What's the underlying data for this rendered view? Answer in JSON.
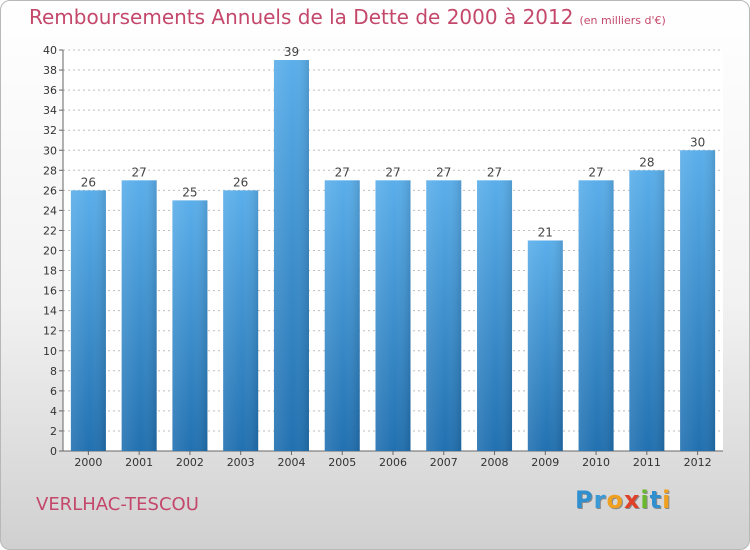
{
  "title": {
    "main": "Remboursements Annuels de la Dette de 2000 à 2012",
    "unit": "(en milliers d'€)"
  },
  "footer": {
    "commune": "VERLHAC-TESCOU",
    "logo_letters": [
      {
        "ch": "P",
        "color": "#2f8fcf"
      },
      {
        "ch": "r",
        "color": "#3a9ad6"
      },
      {
        "ch": "o",
        "color": "#f0a020"
      },
      {
        "ch": "x",
        "color": "#e0402a"
      },
      {
        "ch": "i",
        "color": "#6ab82e"
      },
      {
        "ch": "t",
        "color": "#2f8fcf"
      },
      {
        "ch": "i",
        "color": "#f0a020"
      }
    ]
  },
  "chart_data": {
    "type": "bar",
    "categories": [
      "2000",
      "2001",
      "2002",
      "2003",
      "2004",
      "2005",
      "2006",
      "2007",
      "2008",
      "2009",
      "2010",
      "2011",
      "2012"
    ],
    "values": [
      26,
      27,
      25,
      26,
      39,
      27,
      27,
      27,
      27,
      21,
      27,
      28,
      30
    ],
    "ylim": [
      0,
      40
    ],
    "yticks": [
      0,
      2,
      4,
      6,
      8,
      10,
      12,
      14,
      16,
      18,
      20,
      22,
      24,
      26,
      28,
      30,
      32,
      34,
      36,
      38,
      40
    ],
    "grid": true,
    "bar_color_top": "#5aaeea",
    "bar_color_bottom": "#2170b0",
    "label_color": "#444444"
  }
}
